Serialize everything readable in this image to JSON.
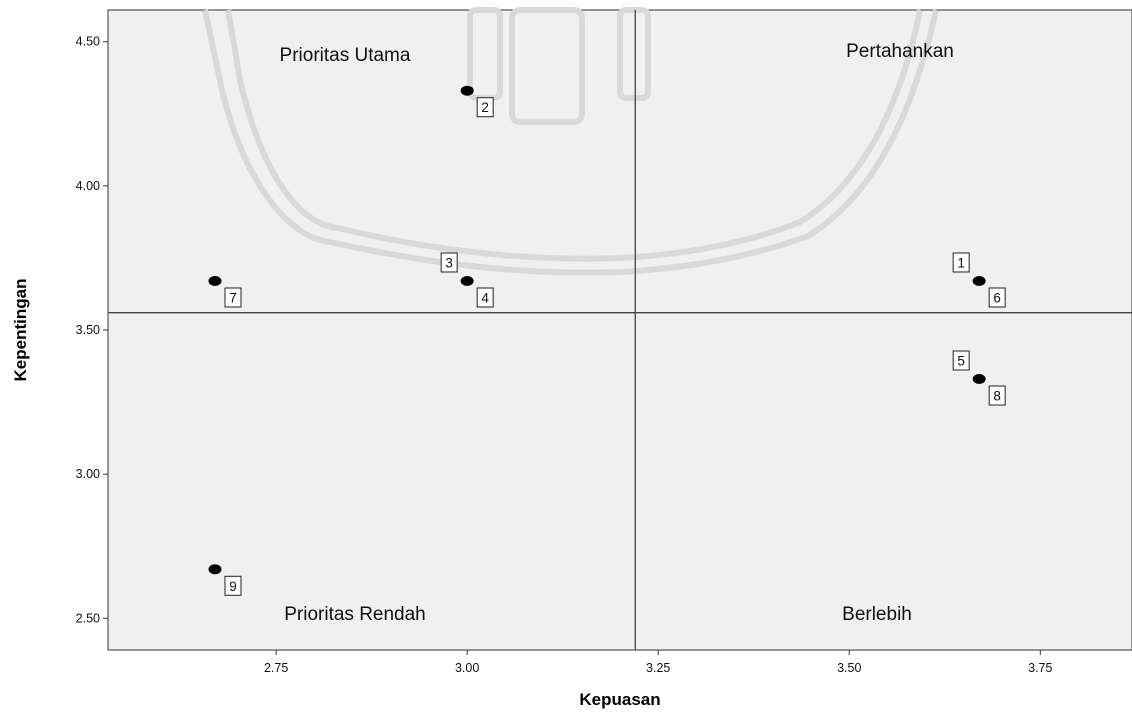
{
  "chart_data": {
    "type": "scatter",
    "xlabel": "Kepuasan",
    "ylabel": "Kepentingan",
    "xlim": [
      2.53,
      3.87
    ],
    "ylim": [
      2.39,
      4.61
    ],
    "xticks": [
      "2.75",
      "3.00",
      "3.25",
      "3.50",
      "3.75"
    ],
    "yticks": [
      "2.50",
      "3.00",
      "3.50",
      "4.00",
      "4.50"
    ],
    "xtick_values": [
      2.75,
      3.0,
      3.25,
      3.5,
      3.75
    ],
    "ytick_values": [
      2.5,
      3.0,
      3.5,
      4.0,
      4.5
    ],
    "reference_lines": {
      "x": 3.22,
      "y": 3.56
    },
    "quadrant_labels": {
      "top_left": "Prioritas Utama",
      "top_right": "Pertahankan",
      "bottom_left": "Prioritas Rendah",
      "bottom_right": "Berlebih"
    },
    "points": [
      {
        "label": "1",
        "x": 3.67,
        "y": 3.67,
        "placement": "upper-left"
      },
      {
        "label": "2",
        "x": 3.0,
        "y": 4.33,
        "placement": "lower-right"
      },
      {
        "label": "3",
        "x": 3.0,
        "y": 3.67,
        "placement": "upper-left"
      },
      {
        "label": "4",
        "x": 3.0,
        "y": 3.67,
        "placement": "lower-right"
      },
      {
        "label": "5",
        "x": 3.67,
        "y": 3.33,
        "placement": "upper-left"
      },
      {
        "label": "6",
        "x": 3.67,
        "y": 3.67,
        "placement": "lower-right"
      },
      {
        "label": "7",
        "x": 2.67,
        "y": 3.67,
        "placement": "lower-right"
      },
      {
        "label": "8",
        "x": 3.67,
        "y": 3.33,
        "placement": "lower-right"
      },
      {
        "label": "9",
        "x": 2.67,
        "y": 2.67,
        "placement": "lower-right"
      }
    ],
    "grid": false,
    "colors": {
      "plot_bg": "#f0f0f0",
      "point": "#000000",
      "watermark": "#d8d8d8"
    }
  }
}
